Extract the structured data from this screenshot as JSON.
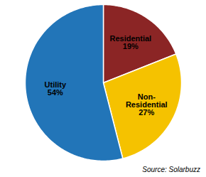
{
  "chart_data": {
    "type": "pie",
    "categories": [
      "Residential\n19%",
      "Non-\nResidential\n27%",
      "Utility\n54%"
    ],
    "values": [
      19,
      27,
      54
    ],
    "colors": [
      "#8B2525",
      "#F5C200",
      "#2275B8"
    ],
    "annotations": [
      "Source: Solarbuzz"
    ]
  }
}
